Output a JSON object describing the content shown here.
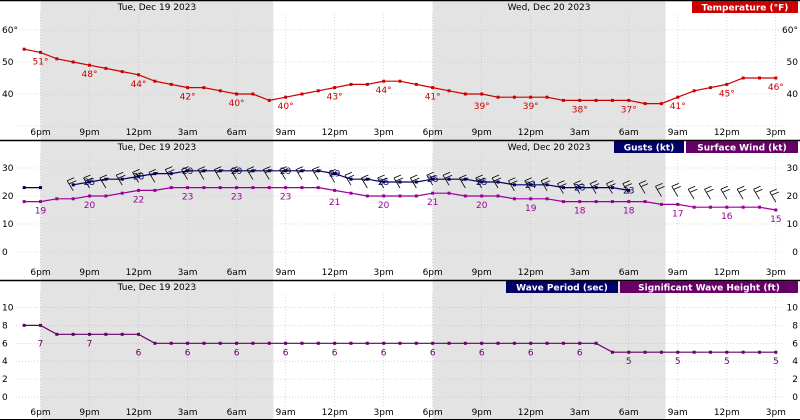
{
  "colors": {
    "night_shade": "#e3e3e3",
    "grid": "#bdbdbd",
    "frame": "#000000",
    "temperature": "#cc0000",
    "gusts": "#000066",
    "wind": "#990099",
    "wave_period": "#000066",
    "wave_height": "#660066",
    "legend_red_bg": "#cc0000",
    "legend_navy_bg": "#000066",
    "legend_purple_bg": "#660066",
    "legend_text": "#ffffff"
  },
  "days": {
    "day1": "Tue, Dec 19 2023",
    "day2": "Wed, Dec 20 2023"
  },
  "time_axis": {
    "tick_labels": [
      "6pm",
      "9pm",
      "12pm",
      "3am",
      "6am",
      "9am",
      "12pm",
      "3pm",
      "6pm",
      "9pm",
      "12pm",
      "3am",
      "6am",
      "9am",
      "12pm",
      "3pm"
    ],
    "tick_hours": [
      0,
      3,
      6,
      9,
      12,
      15,
      18,
      21,
      24,
      27,
      30,
      33,
      36,
      39,
      42,
      45
    ],
    "range_hours": [
      -1.5,
      45.5
    ],
    "night_periods": [
      [
        0,
        14.25
      ],
      [
        24,
        38.25
      ]
    ]
  },
  "chart_data": [
    {
      "type": "line",
      "legend": "Temperature (°F)",
      "ylim": [
        30,
        65
      ],
      "yticks": [
        30,
        40,
        50,
        60
      ],
      "ytick_labels": [
        "",
        "40",
        "50",
        "60°"
      ],
      "grid": true,
      "legend_position": "top-right",
      "series": [
        {
          "key": "temperature",
          "x": [
            -1,
            0,
            1,
            2,
            3,
            4,
            5,
            6,
            7,
            8,
            9,
            10,
            11,
            12,
            13,
            14,
            15,
            16,
            17,
            18,
            19,
            20,
            21,
            22,
            23,
            24,
            25,
            26,
            27,
            28,
            29,
            30,
            31,
            32,
            33,
            34,
            35,
            36,
            37,
            38,
            39,
            40,
            41,
            42,
            43,
            44,
            45
          ],
          "values": [
            54,
            53,
            51,
            50,
            49,
            48,
            47,
            46,
            44,
            43,
            42,
            42,
            41,
            40,
            40,
            38,
            39,
            40,
            41,
            42,
            43,
            43,
            44,
            44,
            43,
            42,
            41,
            40,
            40,
            39,
            39,
            39,
            39,
            38,
            38,
            38,
            38,
            38,
            37,
            37,
            39,
            41,
            42,
            43,
            45,
            45,
            45
          ],
          "labels": [
            {
              "x": 0,
              "y": 53,
              "text": "51°"
            },
            {
              "x": 3,
              "y": 49,
              "text": "48°"
            },
            {
              "x": 6,
              "y": 46,
              "text": "44°"
            },
            {
              "x": 9,
              "y": 42,
              "text": "42°"
            },
            {
              "x": 12,
              "y": 40,
              "text": "40°"
            },
            {
              "x": 15,
              "y": 39,
              "text": "40°"
            },
            {
              "x": 18,
              "y": 42,
              "text": "43°"
            },
            {
              "x": 21,
              "y": 44,
              "text": "44°"
            },
            {
              "x": 24,
              "y": 42,
              "text": "41°"
            },
            {
              "x": 27,
              "y": 39,
              "text": "39°"
            },
            {
              "x": 30,
              "y": 39,
              "text": "39°"
            },
            {
              "x": 33,
              "y": 38,
              "text": "38°"
            },
            {
              "x": 36,
              "y": 38,
              "text": "37°"
            },
            {
              "x": 39,
              "y": 39,
              "text": "41°"
            },
            {
              "x": 42,
              "y": 43,
              "text": "45°"
            },
            {
              "x": 45,
              "y": 45,
              "text": "46°"
            }
          ]
        }
      ]
    },
    {
      "type": "line",
      "legend": [
        "Gusts (kt)",
        "Surface Wind (kt)"
      ],
      "ylim": [
        -5,
        35
      ],
      "yticks": [
        0,
        10,
        20,
        30
      ],
      "ytick_labels": [
        "0",
        "10",
        "20",
        "30"
      ],
      "grid": true,
      "legend_position": "top-right",
      "series": [
        {
          "key": "gusts",
          "x": [
            -1,
            0,
            1,
            2,
            3,
            4,
            5,
            6,
            7,
            8,
            9,
            10,
            11,
            12,
            13,
            14,
            15,
            16,
            17,
            18,
            19,
            20,
            21,
            22,
            23,
            24,
            25,
            26,
            27,
            28,
            29,
            30,
            31,
            32,
            33,
            34,
            35,
            36
          ],
          "values": [
            23,
            23,
            null,
            24,
            25,
            26,
            26,
            27,
            28,
            28,
            29,
            29,
            29,
            29,
            29,
            29,
            29,
            29,
            29,
            28,
            26,
            26,
            25,
            25,
            25,
            26,
            26,
            26,
            25,
            25,
            24,
            24,
            24,
            23,
            23,
            23,
            23,
            22
          ],
          "labels": [
            {
              "x": 3,
              "y": 25,
              "text": "25"
            },
            {
              "x": 6,
              "y": 27,
              "text": "28"
            },
            {
              "x": 9,
              "y": 29,
              "text": "29"
            },
            {
              "x": 12,
              "y": 29,
              "text": "29"
            },
            {
              "x": 15,
              "y": 29,
              "text": "29"
            },
            {
              "x": 18,
              "y": 28,
              "text": "29"
            },
            {
              "x": 21,
              "y": 25,
              "text": "25"
            },
            {
              "x": 24,
              "y": 26,
              "text": "26"
            },
            {
              "x": 27,
              "y": 25,
              "text": "25"
            },
            {
              "x": 30,
              "y": 24,
              "text": "24"
            },
            {
              "x": 33,
              "y": 23,
              "text": "23"
            },
            {
              "x": 36,
              "y": 22,
              "text": "23"
            }
          ]
        },
        {
          "key": "wind",
          "x": [
            -1,
            0,
            1,
            2,
            3,
            4,
            5,
            6,
            7,
            8,
            9,
            10,
            11,
            12,
            13,
            14,
            15,
            16,
            17,
            18,
            19,
            20,
            21,
            22,
            23,
            24,
            25,
            26,
            27,
            28,
            29,
            30,
            31,
            32,
            33,
            34,
            35,
            36,
            37,
            38,
            39,
            40,
            41,
            42,
            43,
            44,
            45
          ],
          "values": [
            18,
            18,
            19,
            19,
            20,
            20,
            21,
            22,
            22,
            23,
            23,
            23,
            23,
            23,
            23,
            23,
            23,
            23,
            23,
            22,
            21,
            20,
            20,
            20,
            20,
            21,
            21,
            20,
            20,
            20,
            19,
            19,
            19,
            18,
            18,
            18,
            18,
            18,
            18,
            17,
            17,
            16,
            16,
            16,
            16,
            16,
            15
          ],
          "labels": [
            {
              "x": 0,
              "y": 18,
              "text": "19"
            },
            {
              "x": 3,
              "y": 20,
              "text": "20"
            },
            {
              "x": 6,
              "y": 22,
              "text": "22"
            },
            {
              "x": 9,
              "y": 23,
              "text": "23"
            },
            {
              "x": 12,
              "y": 23,
              "text": "23"
            },
            {
              "x": 15,
              "y": 23,
              "text": "23"
            },
            {
              "x": 18,
              "y": 21,
              "text": "21"
            },
            {
              "x": 21,
              "y": 20,
              "text": "20"
            },
            {
              "x": 24,
              "y": 21,
              "text": "21"
            },
            {
              "x": 27,
              "y": 20,
              "text": "20"
            },
            {
              "x": 30,
              "y": 19,
              "text": "19"
            },
            {
              "x": 33,
              "y": 18,
              "text": "18"
            },
            {
              "x": 36,
              "y": 18,
              "text": "18"
            },
            {
              "x": 39,
              "y": 17,
              "text": "17"
            },
            {
              "x": 42,
              "y": 16,
              "text": "16"
            },
            {
              "x": 45,
              "y": 15,
              "text": "15"
            }
          ]
        }
      ],
      "wind_barbs": {
        "x": [
          2,
          3,
          4,
          5,
          6,
          7,
          8,
          9,
          10,
          11,
          12,
          13,
          14,
          15,
          16,
          17,
          18,
          19,
          20,
          21,
          22,
          23,
          24,
          25,
          26,
          27,
          28,
          29,
          30,
          31,
          32,
          33,
          34,
          35,
          36,
          37,
          38,
          39,
          40,
          41,
          42,
          43,
          44,
          45
        ],
        "direction": "northwest"
      }
    },
    {
      "type": "line",
      "legend": [
        "Wave Period (sec)",
        "Significant Wave Height (ft)"
      ],
      "ylim": [
        -1,
        11.5
      ],
      "yticks": [
        0,
        2,
        4,
        6,
        8,
        10
      ],
      "ytick_labels": [
        "0",
        "2",
        "4",
        "6",
        "8",
        "10"
      ],
      "grid": true,
      "legend_position": "top-right",
      "series": [
        {
          "key": "wave_height",
          "x": [
            -1,
            0,
            1,
            2,
            3,
            4,
            5,
            6,
            7,
            8,
            9,
            10,
            11,
            12,
            13,
            14,
            15,
            16,
            17,
            18,
            19,
            20,
            21,
            22,
            23,
            24,
            25,
            26,
            27,
            28,
            29,
            30,
            31,
            32,
            33,
            34,
            35,
            36,
            37,
            38,
            39,
            40,
            41,
            42,
            43,
            44,
            45
          ],
          "values": [
            8,
            8,
            7,
            7,
            7,
            7,
            7,
            7,
            6,
            6,
            6,
            6,
            6,
            6,
            6,
            6,
            6,
            6,
            6,
            6,
            6,
            6,
            6,
            6,
            6,
            6,
            6,
            6,
            6,
            6,
            6,
            6,
            6,
            6,
            6,
            6,
            5,
            5,
            5,
            5,
            5,
            5,
            5,
            5,
            5,
            5,
            5
          ],
          "labels": [
            {
              "x": 0,
              "y": 7,
              "text": "7"
            },
            {
              "x": 3,
              "y": 7,
              "text": "7"
            },
            {
              "x": 6,
              "y": 6,
              "text": "6"
            },
            {
              "x": 9,
              "y": 6,
              "text": "6"
            },
            {
              "x": 12,
              "y": 6,
              "text": "6"
            },
            {
              "x": 15,
              "y": 6,
              "text": "6"
            },
            {
              "x": 18,
              "y": 6,
              "text": "6"
            },
            {
              "x": 21,
              "y": 6,
              "text": "6"
            },
            {
              "x": 24,
              "y": 6,
              "text": "6"
            },
            {
              "x": 27,
              "y": 6,
              "text": "6"
            },
            {
              "x": 30,
              "y": 6,
              "text": "6"
            },
            {
              "x": 33,
              "y": 6,
              "text": "6"
            },
            {
              "x": 36,
              "y": 5,
              "text": "5"
            },
            {
              "x": 39,
              "y": 5,
              "text": "5"
            },
            {
              "x": 42,
              "y": 5,
              "text": "5"
            },
            {
              "x": 45,
              "y": 5,
              "text": "5"
            }
          ]
        }
      ]
    }
  ]
}
